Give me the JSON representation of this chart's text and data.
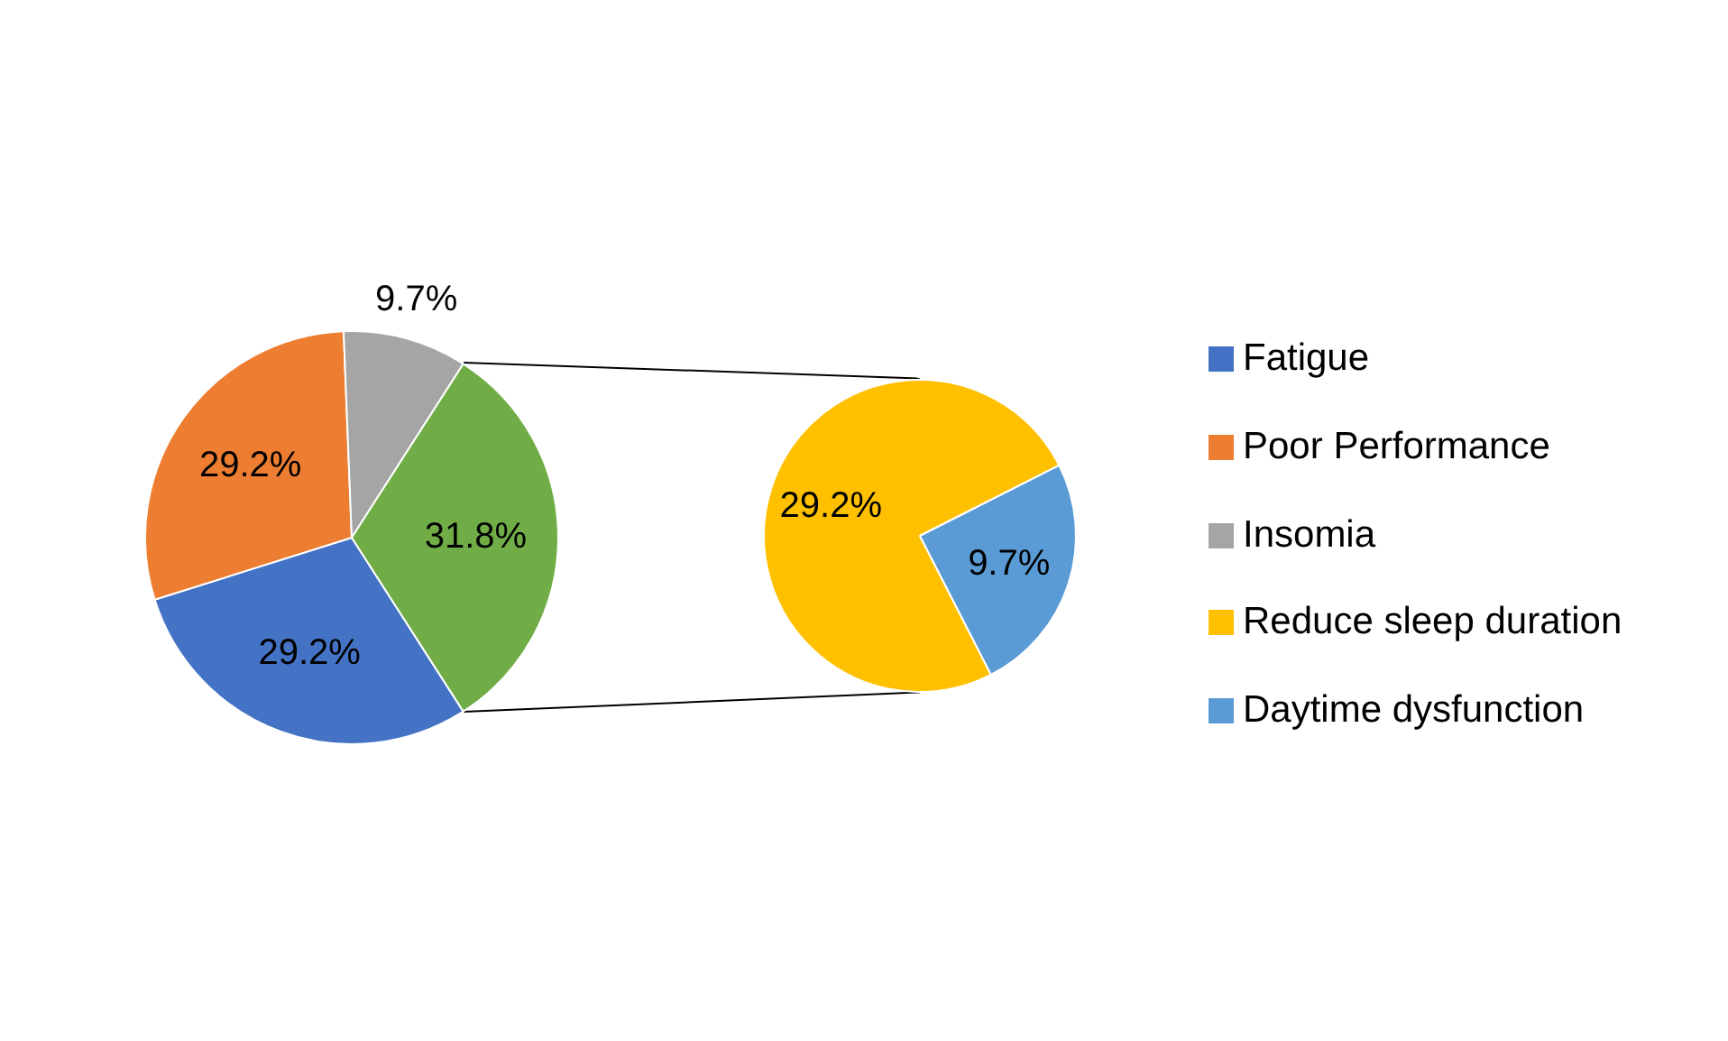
{
  "chart_data": [
    {
      "type": "pie",
      "categories": [
        "Fatigue",
        "Poor Performance",
        "Insomia",
        null
      ],
      "values": [
        29.2,
        29.2,
        9.7,
        31.8
      ],
      "colors": [
        "#4472c4",
        "#ed7d31",
        "#a5a5a5",
        "#70ad47"
      ],
      "value_labels": [
        "29.2%",
        "29.2%",
        "9.7%",
        "31.8%"
      ],
      "legend": "right"
    },
    {
      "type": "pie",
      "categories": [
        "Reduce sleep duration",
        "Daytime dysfunction"
      ],
      "values": [
        29.2,
        9.7
      ],
      "colors": [
        "#ffc000",
        "#5b9bd5"
      ],
      "value_labels": [
        "29.2%",
        "9.7%"
      ],
      "legend": "right"
    }
  ]
}
